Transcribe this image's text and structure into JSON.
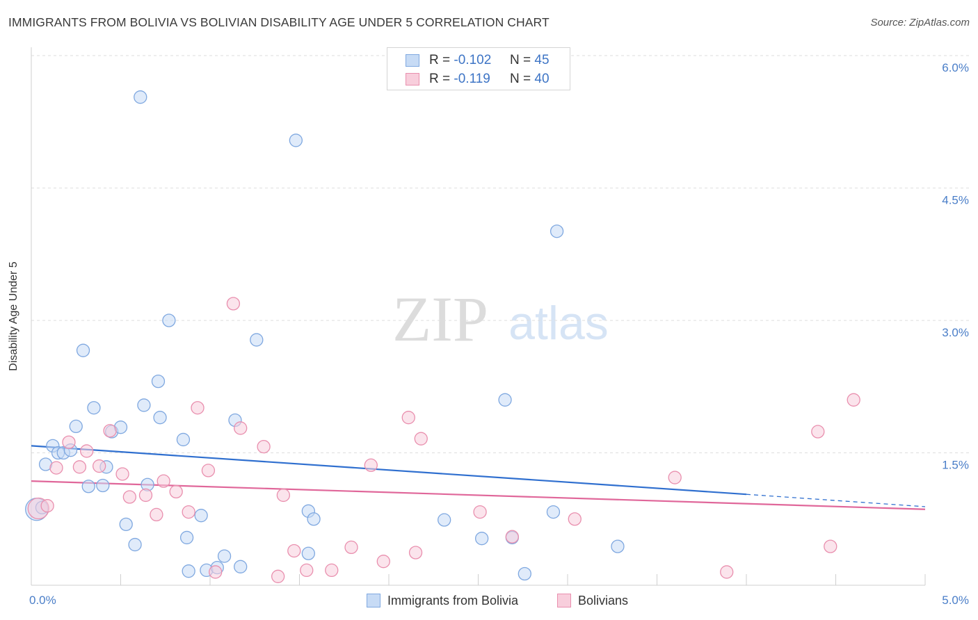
{
  "chart_data": {
    "type": "scatter",
    "title": "IMMIGRANTS FROM BOLIVIA VS BOLIVIAN DISABILITY AGE UNDER 5 CORRELATION CHART",
    "source": "Source: ZipAtlas.com",
    "ylabel": "Disability Age Under 5",
    "xlim": [
      0,
      5
    ],
    "ylim": [
      0,
      6
    ],
    "y_ticks": [
      {
        "value": 1.5,
        "label": "1.5%"
      },
      {
        "value": 3.0,
        "label": "3.0%"
      },
      {
        "value": 4.5,
        "label": "4.5%"
      },
      {
        "value": 6.0,
        "label": "6.0%"
      }
    ],
    "x_tick_labels": {
      "min": "0.0%",
      "max": "5.0%"
    },
    "watermark": {
      "zip": "ZIP",
      "atlas": "atlas"
    },
    "legend": {
      "r_label": "R =",
      "n_label": "N =",
      "entries": [
        {
          "r": "-0.102",
          "n": "45"
        },
        {
          "r": "-0.119",
          "n": "40"
        }
      ]
    },
    "series": [
      {
        "name": "Immigrants from Bolivia",
        "color": "#7fa8e0",
        "fill": "#c7dbf5",
        "line_color": "#2f6fcf",
        "trend": {
          "x0": 0.0,
          "y0": 1.58,
          "x1": 4.0,
          "y1": 1.03,
          "dash_to_x": 5.0,
          "dash_to_y": 0.89
        },
        "points": [
          [
            0.03,
            0.86,
            16
          ],
          [
            0.06,
            0.88,
            9
          ],
          [
            0.08,
            1.37,
            9
          ],
          [
            0.12,
            1.58,
            9
          ],
          [
            0.15,
            1.5,
            9
          ],
          [
            0.18,
            1.5,
            9
          ],
          [
            0.22,
            1.53,
            9
          ],
          [
            0.25,
            1.8,
            9
          ],
          [
            0.29,
            2.66,
            9
          ],
          [
            0.32,
            1.12,
            9
          ],
          [
            0.35,
            2.01,
            9
          ],
          [
            0.4,
            1.13,
            9
          ],
          [
            0.42,
            1.34,
            9
          ],
          [
            0.45,
            1.74,
            9
          ],
          [
            0.5,
            1.79,
            9
          ],
          [
            0.53,
            0.69,
            9
          ],
          [
            0.58,
            0.46,
            9
          ],
          [
            0.61,
            5.53,
            9
          ],
          [
            0.63,
            2.04,
            9
          ],
          [
            0.65,
            1.14,
            9
          ],
          [
            0.71,
            2.31,
            9
          ],
          [
            0.72,
            1.9,
            9
          ],
          [
            0.77,
            3.0,
            9
          ],
          [
            0.85,
            1.65,
            9
          ],
          [
            0.87,
            0.54,
            9
          ],
          [
            0.88,
            0.16,
            9
          ],
          [
            0.95,
            0.79,
            9
          ],
          [
            0.98,
            0.17,
            9
          ],
          [
            1.04,
            0.2,
            9
          ],
          [
            1.08,
            0.33,
            9
          ],
          [
            1.14,
            1.87,
            9
          ],
          [
            1.17,
            0.21,
            9
          ],
          [
            1.26,
            2.78,
            9
          ],
          [
            1.48,
            5.04,
            9
          ],
          [
            1.55,
            0.36,
            9
          ],
          [
            1.55,
            0.84,
            9
          ],
          [
            1.58,
            0.75,
            9
          ],
          [
            2.31,
            0.74,
            9
          ],
          [
            2.52,
            0.53,
            9
          ],
          [
            2.65,
            2.1,
            9
          ],
          [
            2.69,
            0.54,
            9
          ],
          [
            2.76,
            0.13,
            9
          ],
          [
            2.92,
            0.83,
            9
          ],
          [
            2.94,
            4.01,
            9
          ],
          [
            3.28,
            0.44,
            9
          ]
        ]
      },
      {
        "name": "Bolivians",
        "color": "#e98fae",
        "fill": "#f8cedc",
        "line_color": "#e0679a",
        "trend": {
          "x0": 0.0,
          "y0": 1.18,
          "x1": 5.0,
          "y1": 0.86
        },
        "points": [
          [
            0.04,
            0.87,
            15
          ],
          [
            0.09,
            0.9,
            9
          ],
          [
            0.14,
            1.33,
            9
          ],
          [
            0.21,
            1.62,
            9
          ],
          [
            0.27,
            1.34,
            9
          ],
          [
            0.31,
            1.52,
            9
          ],
          [
            0.38,
            1.35,
            9
          ],
          [
            0.44,
            1.75,
            9
          ],
          [
            0.51,
            1.26,
            9
          ],
          [
            0.55,
            1.0,
            9
          ],
          [
            0.64,
            1.02,
            9
          ],
          [
            0.7,
            0.8,
            9
          ],
          [
            0.74,
            1.18,
            9
          ],
          [
            0.81,
            1.06,
            9
          ],
          [
            0.88,
            0.83,
            9
          ],
          [
            0.93,
            2.01,
            9
          ],
          [
            0.99,
            1.3,
            9
          ],
          [
            1.03,
            0.15,
            9
          ],
          [
            1.13,
            3.19,
            9
          ],
          [
            1.17,
            1.78,
            9
          ],
          [
            1.3,
            1.57,
            9
          ],
          [
            1.38,
            0.1,
            9
          ],
          [
            1.41,
            1.02,
            9
          ],
          [
            1.47,
            0.39,
            9
          ],
          [
            1.54,
            0.17,
            9
          ],
          [
            1.68,
            0.17,
            9
          ],
          [
            1.79,
            0.43,
            9
          ],
          [
            1.9,
            1.36,
            9
          ],
          [
            1.97,
            0.27,
            9
          ],
          [
            2.11,
            1.9,
            9
          ],
          [
            2.15,
            0.37,
            9
          ],
          [
            2.18,
            1.66,
            9
          ],
          [
            2.51,
            0.83,
            9
          ],
          [
            2.69,
            0.55,
            9
          ],
          [
            3.04,
            0.75,
            9
          ],
          [
            3.6,
            1.22,
            9
          ],
          [
            3.89,
            0.15,
            9
          ],
          [
            4.4,
            1.74,
            9
          ],
          [
            4.47,
            0.44,
            9
          ],
          [
            4.6,
            2.1,
            9
          ]
        ]
      }
    ]
  }
}
